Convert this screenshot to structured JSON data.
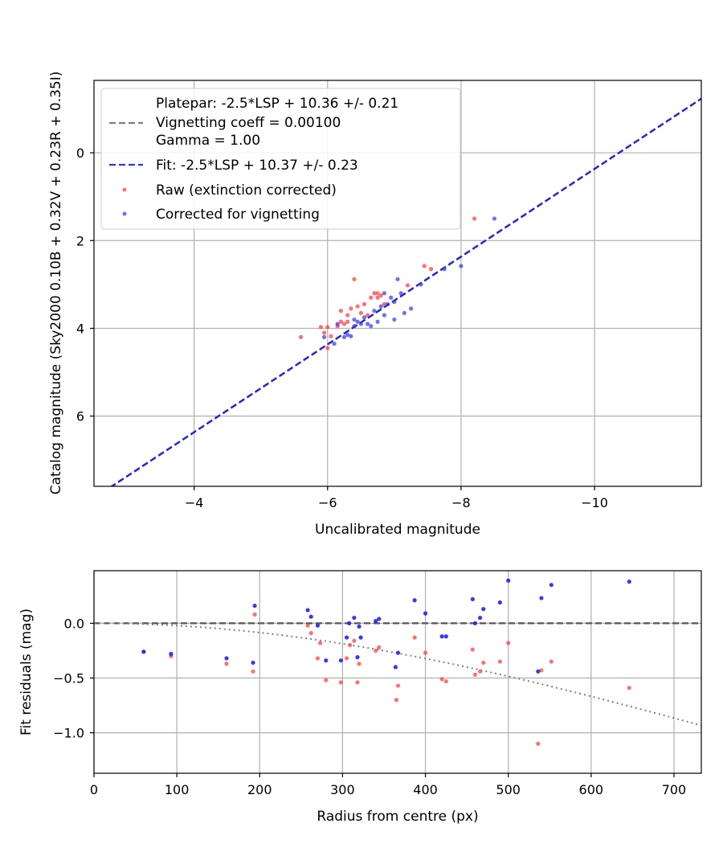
{
  "chart_data": [
    {
      "type": "scatter",
      "xlabel": "Uncalibrated magnitude",
      "ylabel": "Catalog magnitude (Sky2000 0.10B + 0.32V + 0.23R + 0.35I)",
      "xlim": [
        -2.5,
        -11.6
      ],
      "ylim": [
        7.6,
        -1.65
      ],
      "x_inverted": true,
      "y_inverted": true,
      "xticks": [
        -4,
        -6,
        -8,
        -10
      ],
      "xtick_labels": [
        "−4",
        "−6",
        "−8",
        "−10"
      ],
      "yticks": [
        0,
        2,
        4,
        6
      ],
      "ytick_labels": [
        "0",
        "2",
        "4",
        "6"
      ],
      "grid": true,
      "legend_position": "upper-left",
      "lines": [
        {
          "name": "Platepar: -2.5*LSP + 10.36 +/- 0.21",
          "name_lines": [
            "Platepar: -2.5*LSP + 10.36 +/- 0.21",
            "Vignetting coeff = 0.00100",
            "Gamma = 1.00"
          ],
          "color": "#808080",
          "dash": "dashed",
          "slope": 1,
          "intercept": 10.36
        },
        {
          "name": "Fit: -2.5*LSP + 10.37 +/- 0.23",
          "color": "#2222dd",
          "dash": "dashed",
          "slope": 1,
          "intercept": 10.37
        }
      ],
      "series": [
        {
          "name": "Raw (extinction corrected)",
          "color": "#ff3333",
          "points": [
            [
              -5.6,
              4.2
            ],
            [
              -5.9,
              3.97
            ],
            [
              -5.95,
              4.1
            ],
            [
              -6.0,
              3.97
            ],
            [
              -6.05,
              4.18
            ],
            [
              -6.0,
              4.45
            ],
            [
              -6.15,
              3.95
            ],
            [
              -6.2,
              3.85
            ],
            [
              -6.25,
              3.9
            ],
            [
              -6.2,
              3.6
            ],
            [
              -6.3,
              3.7
            ],
            [
              -6.3,
              3.85
            ],
            [
              -6.35,
              3.55
            ],
            [
              -6.4,
              2.88
            ],
            [
              -6.45,
              3.5
            ],
            [
              -6.5,
              3.65
            ],
            [
              -6.55,
              3.45
            ],
            [
              -6.6,
              3.7
            ],
            [
              -6.65,
              3.3
            ],
            [
              -6.7,
              3.2
            ],
            [
              -6.75,
              3.2
            ],
            [
              -6.75,
              3.3
            ],
            [
              -6.8,
              3.25
            ],
            [
              -6.85,
              3.45
            ],
            [
              -7.2,
              3.02
            ],
            [
              -7.45,
              2.58
            ],
            [
              -7.55,
              2.65
            ],
            [
              -8.2,
              1.5
            ]
          ]
        },
        {
          "name": "Corrected for vignetting",
          "color": "#3333ee",
          "points": [
            [
              -5.95,
              4.2
            ],
            [
              -6.1,
              4.35
            ],
            [
              -6.15,
              3.9
            ],
            [
              -6.25,
              4.2
            ],
            [
              -6.3,
              4.15
            ],
            [
              -6.35,
              4.18
            ],
            [
              -6.4,
              3.95
            ],
            [
              -6.4,
              3.8
            ],
            [
              -6.45,
              3.85
            ],
            [
              -6.5,
              3.9
            ],
            [
              -6.55,
              3.75
            ],
            [
              -6.6,
              3.9
            ],
            [
              -6.65,
              3.95
            ],
            [
              -6.7,
              3.6
            ],
            [
              -6.75,
              3.85
            ],
            [
              -6.8,
              3.5
            ],
            [
              -6.85,
              3.7
            ],
            [
              -6.85,
              3.2
            ],
            [
              -6.9,
              3.45
            ],
            [
              -6.95,
              3.3
            ],
            [
              -7.0,
              3.4
            ],
            [
              -7.0,
              3.8
            ],
            [
              -7.05,
              2.88
            ],
            [
              -7.1,
              3.2
            ],
            [
              -7.15,
              3.65
            ],
            [
              -7.25,
              3.55
            ],
            [
              -7.4,
              3.0
            ],
            [
              -7.75,
              2.65
            ],
            [
              -8.0,
              2.58
            ],
            [
              -8.5,
              1.5
            ]
          ]
        }
      ]
    },
    {
      "type": "scatter",
      "xlabel": "Radius from centre (px)",
      "ylabel": "Fit residuals (mag)",
      "xlim": [
        0,
        733
      ],
      "ylim": [
        -1.37,
        0.48
      ],
      "xticks": [
        0,
        100,
        200,
        300,
        400,
        500,
        600,
        700
      ],
      "xtick_labels": [
        "0",
        "100",
        "200",
        "300",
        "400",
        "500",
        "600",
        "700"
      ],
      "yticks": [
        0.0,
        -0.5,
        -1.0
      ],
      "ytick_labels": [
        "0.0",
        "−0.5",
        "−1.0"
      ],
      "grid": true,
      "reference_lines": [
        {
          "kind": "horizontal",
          "y": 0,
          "color": "#555555",
          "dash": "dashed"
        },
        {
          "kind": "vignetting-curve",
          "coeff": 0.001,
          "color": "#808080",
          "dash": "dotted"
        }
      ],
      "series": [
        {
          "name": "Raw (extinction corrected)",
          "color": "#ff3333",
          "points": [
            [
              60,
              -0.26
            ],
            [
              93,
              -0.3
            ],
            [
              160,
              -0.37
            ],
            [
              192,
              -0.44
            ],
            [
              194,
              0.08
            ],
            [
              258,
              -0.02
            ],
            [
              262,
              -0.09
            ],
            [
              270,
              -0.32
            ],
            [
              273,
              -0.18
            ],
            [
              280,
              -0.52
            ],
            [
              298,
              -0.54
            ],
            [
              305,
              -0.32
            ],
            [
              309,
              -0.2
            ],
            [
              314,
              -0.16
            ],
            [
              320,
              -0.37
            ],
            [
              318,
              -0.54
            ],
            [
              340,
              -0.25
            ],
            [
              344,
              -0.22
            ],
            [
              365,
              -0.7
            ],
            [
              367,
              -0.57
            ],
            [
              387,
              -0.13
            ],
            [
              400,
              -0.27
            ],
            [
              420,
              -0.51
            ],
            [
              425,
              -0.53
            ],
            [
              457,
              -0.24
            ],
            [
              460,
              -0.47
            ],
            [
              466,
              -0.44
            ],
            [
              470,
              -0.36
            ],
            [
              490,
              -0.35
            ],
            [
              500,
              -0.18
            ],
            [
              536,
              -1.1
            ],
            [
              540,
              -0.43
            ],
            [
              552,
              -0.35
            ],
            [
              646,
              -0.59
            ]
          ]
        },
        {
          "name": "Corrected for vignetting",
          "color": "#2222ee",
          "points": [
            [
              60,
              -0.26
            ],
            [
              93,
              -0.28
            ],
            [
              160,
              -0.32
            ],
            [
              192,
              -0.36
            ],
            [
              194,
              0.16
            ],
            [
              258,
              0.12
            ],
            [
              262,
              0.06
            ],
            [
              270,
              -0.02
            ],
            [
              280,
              -0.34
            ],
            [
              298,
              -0.34
            ],
            [
              305,
              -0.13
            ],
            [
              308,
              0.0
            ],
            [
              314,
              0.05
            ],
            [
              318,
              -0.31
            ],
            [
              320,
              -0.03
            ],
            [
              322,
              -0.13
            ],
            [
              340,
              0.02
            ],
            [
              344,
              0.04
            ],
            [
              364,
              -0.4
            ],
            [
              367,
              -0.27
            ],
            [
              387,
              0.21
            ],
            [
              400,
              0.09
            ],
            [
              420,
              -0.12
            ],
            [
              425,
              -0.12
            ],
            [
              457,
              0.22
            ],
            [
              460,
              0.0
            ],
            [
              466,
              0.05
            ],
            [
              470,
              0.13
            ],
            [
              490,
              0.19
            ],
            [
              500,
              0.39
            ],
            [
              536,
              -0.44
            ],
            [
              540,
              0.23
            ],
            [
              552,
              0.35
            ],
            [
              646,
              0.38
            ]
          ]
        }
      ]
    }
  ]
}
